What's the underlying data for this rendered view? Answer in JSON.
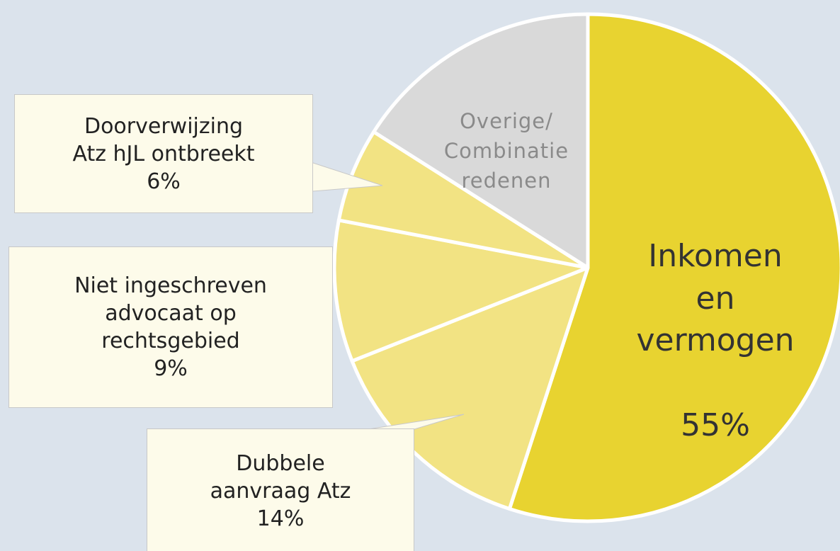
{
  "chart_data": {
    "type": "pie",
    "categories": [
      "Inkomen\nen\nvermogen",
      "Dubbele\naanvraag Atz",
      "Niet ingeschreven\nadvocaat op\nrechtsgebied",
      "Doorverwijzing\nAtz hJL ontbreekt",
      "Overige/\nCombinatie\nredenen"
    ],
    "values": [
      55,
      14,
      9,
      6,
      16
    ],
    "value_labels": [
      "55%",
      "14%",
      "9%",
      "6%",
      null
    ],
    "colors": [
      "#e8d330",
      "#f2e383",
      "#f2e383",
      "#f2e383",
      "#d9d9d9"
    ]
  }
}
